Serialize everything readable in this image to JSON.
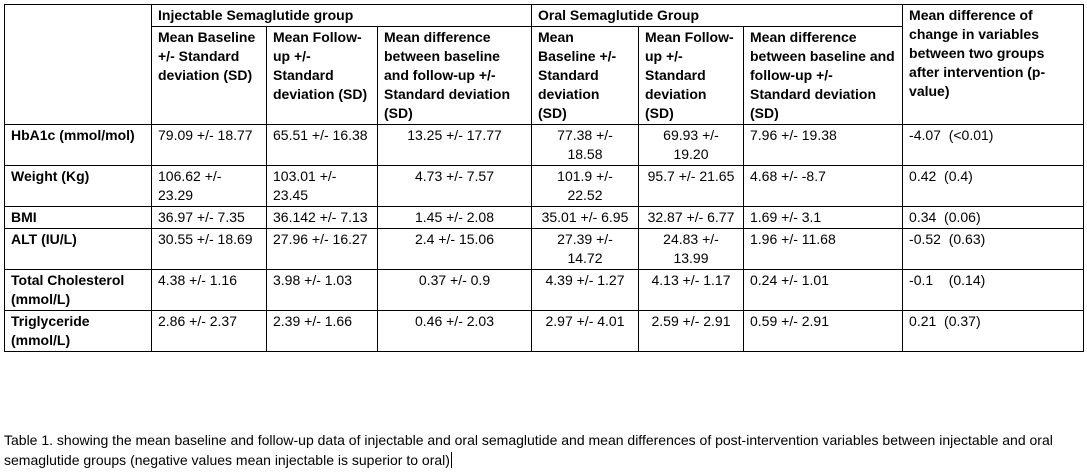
{
  "header": {
    "group_injectable": "Injectable Semaglutide group",
    "group_oral": "Oral Semaglutide Group",
    "mean_diff_between": "Mean difference of change in variables between two groups after intervention (p-value)",
    "inj_baseline": "Mean Baseline +/- Standard deviation (SD)",
    "inj_followup": "Mean Follow-up +/- Standard deviation (SD)",
    "inj_diff": "Mean difference between baseline and follow-up +/- Standard deviation (SD)",
    "oral_baseline": "Mean Baseline +/- Standard deviation (SD)",
    "oral_followup": "Mean Follow-up +/- Standard deviation (SD)",
    "oral_diff": "Mean difference between baseline and follow-up +/- Standard deviation (SD)"
  },
  "rows": [
    {
      "label": "HbA1c (mmol/mol)",
      "inj_baseline": "79.09 +/- 18.77",
      "inj_followup": "65.51 +/- 16.38",
      "inj_diff": "13.25 +/- 17.77",
      "oral_baseline": "77.38 +/- 18.58",
      "oral_followup": "69.93 +/- 19.20",
      "oral_diff": "7.96 +/- 19.38",
      "between": "-4.07  (<0.01)"
    },
    {
      "label": "Weight (Kg)",
      "inj_baseline": "106.62 +/- 23.29",
      "inj_followup": "103.01 +/- 23.45",
      "inj_diff": "4.73 +/- 7.57",
      "oral_baseline": "101.9 +/- 22.52",
      "oral_followup": "95.7 +/- 21.65",
      "oral_diff": "4.68 +/- -8.7",
      "between": "0.42  (0.4)"
    },
    {
      "label": "BMI",
      "inj_baseline": "36.97 +/- 7.35",
      "inj_followup": "36.142 +/- 7.13",
      "inj_diff": "1.45 +/- 2.08",
      "oral_baseline": "35.01 +/- 6.95",
      "oral_followup": "32.87 +/- 6.77",
      "oral_diff": "1.69 +/- 3.1",
      "between": "0.34  (0.06)"
    },
    {
      "label": "ALT (IU/L)",
      "inj_baseline": "30.55 +/- 18.69",
      "inj_followup": "27.96 +/- 16.27",
      "inj_diff": "2.4 +/- 15.06",
      "oral_baseline": "27.39 +/- 14.72",
      "oral_followup": "24.83 +/- 13.99",
      "oral_diff": "1.96 +/- 11.68",
      "between": "-0.52  (0.63)"
    },
    {
      "label": "Total Cholesterol (mmol/L)",
      "inj_baseline": "4.38 +/- 1.16",
      "inj_followup": "3.98 +/- 1.03",
      "inj_diff": "0.37 +/- 0.9",
      "oral_baseline": "4.39 +/- 1.27",
      "oral_followup": "4.13 +/- 1.17",
      "oral_diff": "0.24 +/- 1.01",
      "between": "-0.1    (0.14)"
    },
    {
      "label": "Triglyceride (mmol/L)",
      "inj_baseline": "2.86 +/- 2.37",
      "inj_followup": "2.39 +/- 1.66",
      "inj_diff": "0.46 +/- 2.03",
      "oral_baseline": "2.97 +/- 4.01",
      "oral_followup": "2.59 +/- 2.91",
      "oral_diff": "0.59 +/- 2.91",
      "between": "0.21  (0.37)"
    }
  ],
  "caption": "Table 1. showing the mean baseline and follow-up data of injectable and oral semaglutide and mean differences of post-intervention variables between injectable and oral semaglutide groups (negative values mean injectable is superior to oral)"
}
